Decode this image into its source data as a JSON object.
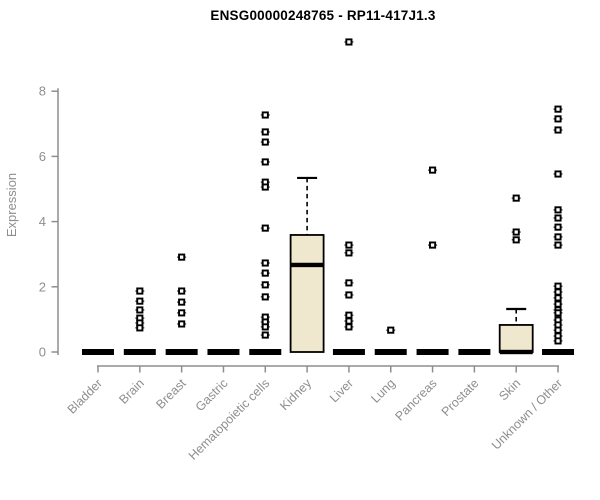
{
  "title": "ENSG00000248765 - RP11-417J1.3",
  "ylabel": "Expression",
  "colors": {
    "axis": "#8e8e8e",
    "tick_label": "#8e8e8e",
    "box_fill": "#f0e8ce",
    "box_border": "#000000",
    "median": "#000000",
    "outlier": "#000000",
    "title": "#000000"
  },
  "chart_data": {
    "type": "boxplot",
    "title": "ENSG00000248765 - RP11-417J1.3",
    "ylabel": "Expression",
    "ylim": [
      0,
      8
    ],
    "yticks": [
      0,
      2,
      4,
      6,
      8
    ],
    "grid": false,
    "categories": [
      "Bladder",
      "Brain",
      "Breast",
      "Gastric",
      "Hematopoietic cells",
      "Kidney",
      "Liver",
      "Lung",
      "Pancreas",
      "Prostate",
      "Skin",
      "Unknown / Other"
    ],
    "series": [
      {
        "name": "Bladder",
        "low": 0,
        "q1": 0,
        "median": 0,
        "q3": 0,
        "high": 0,
        "outliers": []
      },
      {
        "name": "Brain",
        "low": 0,
        "q1": 0,
        "median": 0,
        "q3": 0,
        "high": 0,
        "outliers": [
          1.87,
          1.56,
          1.29,
          1.04,
          0.89,
          0.74
        ]
      },
      {
        "name": "Breast",
        "low": 0,
        "q1": 0,
        "median": 0,
        "q3": 0,
        "high": 0,
        "outliers": [
          2.91,
          1.87,
          1.53,
          1.2,
          0.86
        ]
      },
      {
        "name": "Gastric",
        "low": 0,
        "q1": 0,
        "median": 0,
        "q3": 0,
        "high": 0,
        "outliers": []
      },
      {
        "name": "Hematopoietic cells",
        "low": 0,
        "q1": 0,
        "median": 0,
        "q3": 0,
        "high": 0,
        "outliers": [
          7.27,
          6.75,
          6.44,
          5.83,
          5.21,
          5.06,
          3.8,
          2.73,
          2.42,
          2.06,
          1.69,
          1.07,
          0.92,
          0.77,
          0.52
        ]
      },
      {
        "name": "Kidney",
        "low": 0,
        "q1": 0,
        "median": 2.67,
        "q3": 3.59,
        "high": 5.34,
        "outliers": []
      },
      {
        "name": "Liver",
        "low": 0,
        "q1": 0,
        "median": 0,
        "q3": 0,
        "high": 0,
        "outliers": [
          9.51,
          3.28,
          3.04,
          2.12,
          1.75,
          1.13,
          0.95,
          0.77
        ]
      },
      {
        "name": "Lung",
        "low": 0,
        "q1": 0,
        "median": 0,
        "q3": 0,
        "high": 0,
        "outliers": [
          0.67
        ]
      },
      {
        "name": "Pancreas",
        "low": 0,
        "q1": 0,
        "median": 0,
        "q3": 0,
        "high": 0,
        "outliers": [
          5.58,
          3.28
        ]
      },
      {
        "name": "Prostate",
        "low": 0,
        "q1": 0,
        "median": 0,
        "q3": 0,
        "high": 0,
        "outliers": []
      },
      {
        "name": "Skin",
        "low": 0,
        "q1": 0,
        "median": 0,
        "q3": 0.83,
        "high": 1.32,
        "outliers": [
          4.72,
          3.68,
          3.44
        ]
      },
      {
        "name": "Unknown / Other",
        "low": 0,
        "q1": 0,
        "median": 0,
        "q3": 0,
        "high": 0,
        "outliers": [
          7.45,
          7.15,
          6.81,
          5.46,
          4.36,
          4.11,
          3.83,
          3.53,
          3.28,
          2.02,
          1.84,
          1.66,
          1.47,
          1.29,
          1.2,
          0.98,
          0.83,
          0.67,
          0.49,
          0.34
        ]
      }
    ]
  }
}
